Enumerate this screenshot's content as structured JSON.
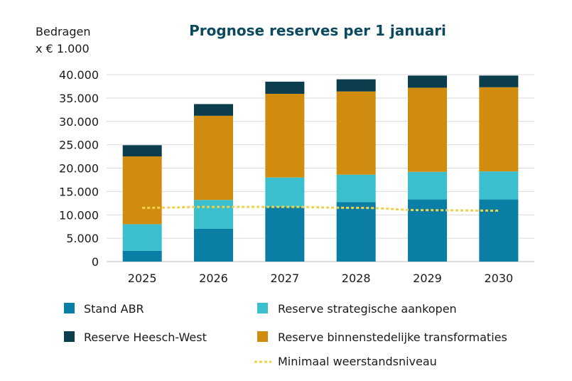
{
  "chart_data": {
    "type": "bar",
    "stacked": true,
    "title": "Prognose reserves per 1 januari",
    "ylabel_line1": "Bedragen",
    "ylabel_line2": "x € 1.000",
    "xlabel": "",
    "categories": [
      "2025",
      "2026",
      "2027",
      "2028",
      "2029",
      "2030"
    ],
    "ylim": [
      0,
      40000
    ],
    "yticks": [
      0,
      5000,
      10000,
      15000,
      20000,
      25000,
      30000,
      35000,
      40000
    ],
    "ytick_labels": [
      "0",
      "5.000",
      "10.000",
      "15.000",
      "20.000",
      "25.000",
      "30.000",
      "35.000",
      "40.000"
    ],
    "grid": true,
    "series": [
      {
        "name": "Stand ABR",
        "color": "#0a7ea4",
        "values": [
          2300,
          7000,
          11700,
          12700,
          13300,
          13300
        ]
      },
      {
        "name": "Reserve strategische aankopen",
        "color": "#3bbfcc",
        "values": [
          5700,
          6200,
          6300,
          5900,
          5900,
          6000
        ]
      },
      {
        "name": "Reserve binnenstedelijke transformaties",
        "color": "#d08c0e",
        "values": [
          14500,
          18000,
          17900,
          17800,
          18000,
          18000
        ]
      },
      {
        "name": "Reserve Heesch-West",
        "color": "#0b3d4d",
        "values": [
          2400,
          2500,
          2600,
          2600,
          2600,
          2500
        ]
      }
    ],
    "line_series": {
      "name": "Minimaal weerstandsniveau",
      "color": "#f2d14a",
      "style": "dashed",
      "values": [
        11500,
        11700,
        11700,
        11500,
        11000,
        10900
      ]
    },
    "legend": [
      "Stand ABR",
      "Reserve strategische aankopen",
      "Reserve Heesch-West",
      "Reserve binnenstedelijke transformaties",
      "Minimaal weerstandsniveau"
    ]
  }
}
